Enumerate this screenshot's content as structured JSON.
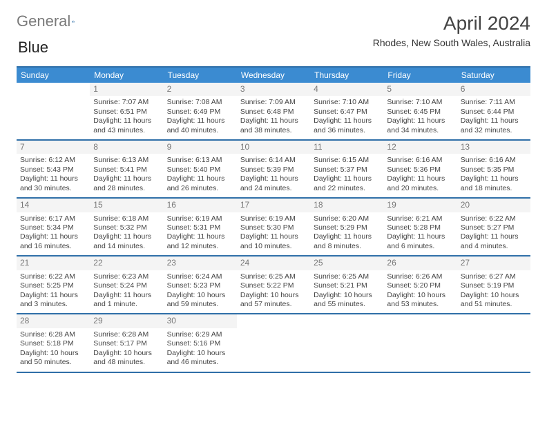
{
  "brand": {
    "part1": "General",
    "part2": "Blue"
  },
  "title": "April 2024",
  "subtitle": "Rhodes, New South Wales, Australia",
  "colors": {
    "header_bg": "#3b8bd1",
    "rule": "#2f6fa8",
    "logo_gray": "#7a7a7a",
    "logo_blue": "#2f6fa8"
  },
  "dow": [
    "Sunday",
    "Monday",
    "Tuesday",
    "Wednesday",
    "Thursday",
    "Friday",
    "Saturday"
  ],
  "weeks": [
    [
      {
        "n": "",
        "lines": []
      },
      {
        "n": "1",
        "lines": [
          "Sunrise: 7:07 AM",
          "Sunset: 6:51 PM",
          "Daylight: 11 hours and 43 minutes."
        ]
      },
      {
        "n": "2",
        "lines": [
          "Sunrise: 7:08 AM",
          "Sunset: 6:49 PM",
          "Daylight: 11 hours and 40 minutes."
        ]
      },
      {
        "n": "3",
        "lines": [
          "Sunrise: 7:09 AM",
          "Sunset: 6:48 PM",
          "Daylight: 11 hours and 38 minutes."
        ]
      },
      {
        "n": "4",
        "lines": [
          "Sunrise: 7:10 AM",
          "Sunset: 6:47 PM",
          "Daylight: 11 hours and 36 minutes."
        ]
      },
      {
        "n": "5",
        "lines": [
          "Sunrise: 7:10 AM",
          "Sunset: 6:45 PM",
          "Daylight: 11 hours and 34 minutes."
        ]
      },
      {
        "n": "6",
        "lines": [
          "Sunrise: 7:11 AM",
          "Sunset: 6:44 PM",
          "Daylight: 11 hours and 32 minutes."
        ]
      }
    ],
    [
      {
        "n": "7",
        "lines": [
          "Sunrise: 6:12 AM",
          "Sunset: 5:43 PM",
          "Daylight: 11 hours and 30 minutes."
        ]
      },
      {
        "n": "8",
        "lines": [
          "Sunrise: 6:13 AM",
          "Sunset: 5:41 PM",
          "Daylight: 11 hours and 28 minutes."
        ]
      },
      {
        "n": "9",
        "lines": [
          "Sunrise: 6:13 AM",
          "Sunset: 5:40 PM",
          "Daylight: 11 hours and 26 minutes."
        ]
      },
      {
        "n": "10",
        "lines": [
          "Sunrise: 6:14 AM",
          "Sunset: 5:39 PM",
          "Daylight: 11 hours and 24 minutes."
        ]
      },
      {
        "n": "11",
        "lines": [
          "Sunrise: 6:15 AM",
          "Sunset: 5:37 PM",
          "Daylight: 11 hours and 22 minutes."
        ]
      },
      {
        "n": "12",
        "lines": [
          "Sunrise: 6:16 AM",
          "Sunset: 5:36 PM",
          "Daylight: 11 hours and 20 minutes."
        ]
      },
      {
        "n": "13",
        "lines": [
          "Sunrise: 6:16 AM",
          "Sunset: 5:35 PM",
          "Daylight: 11 hours and 18 minutes."
        ]
      }
    ],
    [
      {
        "n": "14",
        "lines": [
          "Sunrise: 6:17 AM",
          "Sunset: 5:34 PM",
          "Daylight: 11 hours and 16 minutes."
        ]
      },
      {
        "n": "15",
        "lines": [
          "Sunrise: 6:18 AM",
          "Sunset: 5:32 PM",
          "Daylight: 11 hours and 14 minutes."
        ]
      },
      {
        "n": "16",
        "lines": [
          "Sunrise: 6:19 AM",
          "Sunset: 5:31 PM",
          "Daylight: 11 hours and 12 minutes."
        ]
      },
      {
        "n": "17",
        "lines": [
          "Sunrise: 6:19 AM",
          "Sunset: 5:30 PM",
          "Daylight: 11 hours and 10 minutes."
        ]
      },
      {
        "n": "18",
        "lines": [
          "Sunrise: 6:20 AM",
          "Sunset: 5:29 PM",
          "Daylight: 11 hours and 8 minutes."
        ]
      },
      {
        "n": "19",
        "lines": [
          "Sunrise: 6:21 AM",
          "Sunset: 5:28 PM",
          "Daylight: 11 hours and 6 minutes."
        ]
      },
      {
        "n": "20",
        "lines": [
          "Sunrise: 6:22 AM",
          "Sunset: 5:27 PM",
          "Daylight: 11 hours and 4 minutes."
        ]
      }
    ],
    [
      {
        "n": "21",
        "lines": [
          "Sunrise: 6:22 AM",
          "Sunset: 5:25 PM",
          "Daylight: 11 hours and 3 minutes."
        ]
      },
      {
        "n": "22",
        "lines": [
          "Sunrise: 6:23 AM",
          "Sunset: 5:24 PM",
          "Daylight: 11 hours and 1 minute."
        ]
      },
      {
        "n": "23",
        "lines": [
          "Sunrise: 6:24 AM",
          "Sunset: 5:23 PM",
          "Daylight: 10 hours and 59 minutes."
        ]
      },
      {
        "n": "24",
        "lines": [
          "Sunrise: 6:25 AM",
          "Sunset: 5:22 PM",
          "Daylight: 10 hours and 57 minutes."
        ]
      },
      {
        "n": "25",
        "lines": [
          "Sunrise: 6:25 AM",
          "Sunset: 5:21 PM",
          "Daylight: 10 hours and 55 minutes."
        ]
      },
      {
        "n": "26",
        "lines": [
          "Sunrise: 6:26 AM",
          "Sunset: 5:20 PM",
          "Daylight: 10 hours and 53 minutes."
        ]
      },
      {
        "n": "27",
        "lines": [
          "Sunrise: 6:27 AM",
          "Sunset: 5:19 PM",
          "Daylight: 10 hours and 51 minutes."
        ]
      }
    ],
    [
      {
        "n": "28",
        "lines": [
          "Sunrise: 6:28 AM",
          "Sunset: 5:18 PM",
          "Daylight: 10 hours and 50 minutes."
        ]
      },
      {
        "n": "29",
        "lines": [
          "Sunrise: 6:28 AM",
          "Sunset: 5:17 PM",
          "Daylight: 10 hours and 48 minutes."
        ]
      },
      {
        "n": "30",
        "lines": [
          "Sunrise: 6:29 AM",
          "Sunset: 5:16 PM",
          "Daylight: 10 hours and 46 minutes."
        ]
      },
      {
        "n": "",
        "lines": []
      },
      {
        "n": "",
        "lines": []
      },
      {
        "n": "",
        "lines": []
      },
      {
        "n": "",
        "lines": []
      }
    ]
  ]
}
